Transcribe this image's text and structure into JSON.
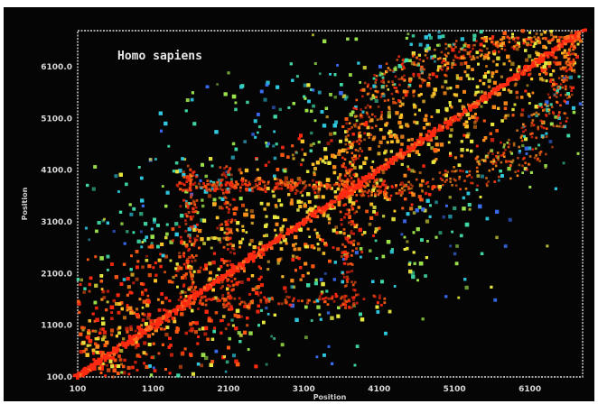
{
  "chart_data": {
    "type": "scatter",
    "title": "Homo sapiens",
    "xlabel": "Position",
    "ylabel": "Position",
    "xlim": [
      100,
      6800
    ],
    "ylim": [
      100,
      6800
    ],
    "x_ticks": [
      "100",
      "1100",
      "2100",
      "3100",
      "4100",
      "5100",
      "6100"
    ],
    "y_ticks": [
      "100.0",
      "1100.0",
      "2100.0",
      "3100.0",
      "4100.0",
      "5100.0",
      "6100.0"
    ],
    "x_tick_values": [
      100,
      1100,
      2100,
      3100,
      4100,
      5100,
      6100
    ],
    "y_tick_values": [
      100,
      1100,
      2100,
      3100,
      4100,
      5100,
      6100
    ],
    "grid": false,
    "legend": "none",
    "description_of_marks": "dense multicolored point cloud (red, orange, yellow, green, cyan, blue) with a strong red diagonal",
    "colors": {
      "background": "#050505",
      "border": "#d8d8d8",
      "palette": [
        "#ff2a10",
        "#ff5a12",
        "#ff8c1a",
        "#ffc52a",
        "#e8e840",
        "#9be24a",
        "#40d8a8",
        "#2fc8e0",
        "#3a6cf0"
      ]
    }
  }
}
